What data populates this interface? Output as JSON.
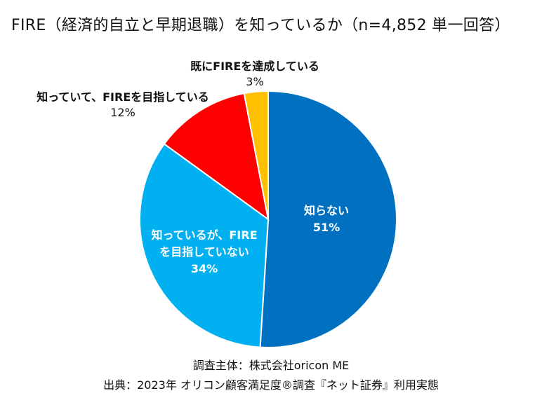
{
  "title": "FIRE（経済的自立と早期退職）を知っているか（n=4,852 単一回答）",
  "chart_data": {
    "type": "pie",
    "title": "FIRE（経済的自立と早期退職）を知っているか（n=4,852 単一回答）",
    "slices": [
      {
        "label": "知らない",
        "value": 51,
        "pct_label": "51%",
        "color": "#0070C0"
      },
      {
        "label": "知っているが、FIREを目指していない",
        "label_line1": "知っているが、FIRE",
        "label_line2": "を目指していない",
        "value": 34,
        "pct_label": "34%",
        "color": "#00B0F0"
      },
      {
        "label": "知っていて、FIREを目指している",
        "value": 12,
        "pct_label": "12%",
        "color": "#FF0000"
      },
      {
        "label": "既にFIREを達成している",
        "value": 3,
        "pct_label": "3%",
        "color": "#FFC000"
      }
    ]
  },
  "footer": {
    "line1": "調査主体：株式会社oricon ME",
    "line2": "出典：2023年 オリコン顧客満足度®調査『ネット証券』利用実態"
  }
}
